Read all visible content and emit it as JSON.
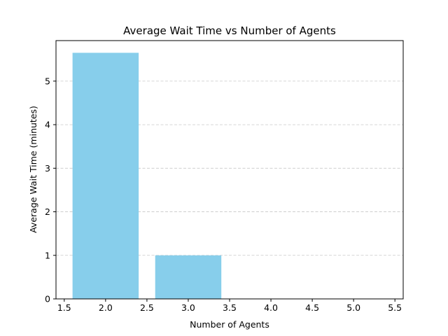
{
  "chart_data": {
    "type": "bar",
    "title": "Average Wait Time vs Number of Agents",
    "xlabel": "Number of Agents",
    "ylabel": "Average Wait Time (minutes)",
    "x": [
      2,
      3,
      4,
      5
    ],
    "values": [
      5.65,
      1.0,
      0.0,
      0.0
    ],
    "bar_width": 0.8,
    "xlim": [
      1.4,
      5.6
    ],
    "ylim": [
      0,
      5.93
    ],
    "xticks": [
      1.5,
      2.0,
      2.5,
      3.0,
      3.5,
      4.0,
      4.5,
      5.0,
      5.5
    ],
    "xtick_labels": [
      "1.5",
      "2.0",
      "2.5",
      "3.0",
      "3.5",
      "4.0",
      "4.5",
      "5.0",
      "5.5"
    ],
    "yticks": [
      0,
      1,
      2,
      3,
      4,
      5
    ],
    "ytick_labels": [
      "0",
      "1",
      "2",
      "3",
      "4",
      "5"
    ],
    "grid": "y-dashed",
    "bar_color": "#87CEEB",
    "grid_color": "#c8c8c8"
  }
}
